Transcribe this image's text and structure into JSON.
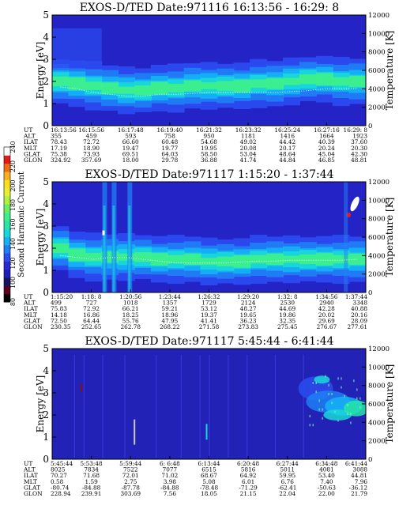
{
  "colorbar": {
    "label": "Second Harmonic Current",
    "ticks": [
      "80",
      "100",
      "120",
      "140",
      "160",
      "180",
      "200",
      "220",
      "240"
    ],
    "colors": [
      "#000000",
      "#5a0020",
      "#15155e",
      "#1c1cbe",
      "#2a2ad4",
      "#2b4cf0",
      "#1f7ff5",
      "#15b2f5",
      "#19d8d8",
      "#26e6a8",
      "#3ff08a",
      "#69f060",
      "#b0f040",
      "#e4f030",
      "#f8e020",
      "#f8b020",
      "#f26c18",
      "#e31a1c",
      "#ffffff"
    ]
  },
  "row_labels": [
    "UT",
    "ALT",
    "ILAT",
    "MLT",
    "GLAT",
    "GLON"
  ],
  "chart_data": [
    {
      "type": "heatmap",
      "title": "EXOS-D/TED  Date:971116  16:13:56 - 16:29: 8",
      "ylabel": "Energy [eV]",
      "y2label": "Temperature [K]",
      "ylim": [
        0,
        5
      ],
      "y2lim": [
        0,
        12000
      ],
      "yticks": [
        "0",
        "1",
        "2",
        "3",
        "4",
        "5"
      ],
      "y2ticks": [
        "0",
        "2000",
        "4000",
        "6000",
        "8000",
        "10000",
        "12000"
      ],
      "band_center": [
        2.0,
        1.9,
        1.8,
        1.7,
        1.6,
        1.6,
        1.7,
        1.7,
        1.8,
        1.8,
        1.8,
        1.8,
        1.9,
        1.9,
        2.0,
        2.1,
        2.1,
        2.0,
        2.0
      ],
      "temperature": [
        4200,
        4000,
        3600,
        3400,
        3200,
        3200,
        3400,
        3400,
        3500,
        3600,
        3600,
        3600,
        3600,
        3600,
        3700,
        3800,
        4000,
        4000,
        4000
      ],
      "columns": [
        {
          "UT": "16:13:56",
          "ALT": "355",
          "ILAT": "78.43",
          "MLT": "17.19",
          "GLAT": "75.38",
          "GLON": "324.92"
        },
        {
          "UT": "16:15:56",
          "ALT": "459",
          "ILAT": "72.72",
          "MLT": "18.90",
          "GLAT": "73.93",
          "GLON": "357.69"
        },
        {
          "UT": "16:17:48",
          "ALT": "593",
          "ILAT": "66.60",
          "MLT": "19.47",
          "GLAT": "69.51",
          "GLON": "18.00"
        },
        {
          "UT": "16:19:40",
          "ALT": "758",
          "ILAT": "60.48",
          "MLT": "19.77",
          "GLAT": "64.03",
          "GLON": "29.78"
        },
        {
          "UT": "16:21:32",
          "ALT": "950",
          "ILAT": "54.68",
          "MLT": "19.95",
          "GLAT": "58.50",
          "GLON": "36.88"
        },
        {
          "UT": "16:23:32",
          "ALT": "1181",
          "ILAT": "49.02",
          "MLT": "20.08",
          "GLAT": "53.04",
          "GLON": "41.74"
        },
        {
          "UT": "16:25:24",
          "ALT": "1416",
          "ILAT": "44.42",
          "MLT": "20.17",
          "GLAT": "48.64",
          "GLON": "44.84"
        },
        {
          "UT": "16:27:16",
          "ALT": "1664",
          "ILAT": "40.39",
          "MLT": "20.24",
          "GLAT": "45.04",
          "GLON": "46.85"
        },
        {
          "UT": "16:29: 8",
          "ALT": "1923",
          "ILAT": "37.60",
          "MLT": "20.30",
          "GLAT": "42.30",
          "GLON": "48.81"
        }
      ]
    },
    {
      "type": "heatmap",
      "title": "EXOS-D/TED   Date:971117  1:15:20 - 1:37:44",
      "ylabel": "Energy [eV]",
      "y2label": "Temperature [K]",
      "ylim": [
        0,
        5
      ],
      "y2lim": [
        0,
        12000
      ],
      "yticks": [
        "0",
        "1",
        "2",
        "3",
        "4",
        "5"
      ],
      "y2ticks": [
        "0",
        "2000",
        "4000",
        "6000",
        "8000",
        "10000",
        "12000"
      ],
      "band_center": [
        2.0,
        1.7,
        1.6,
        1.6,
        1.6,
        1.6,
        1.5,
        1.5,
        1.5,
        1.4,
        1.4,
        1.4,
        1.5,
        1.5,
        1.5,
        1.5,
        1.5,
        1.5,
        1.5
      ],
      "temperature": [
        4000,
        3800,
        3600,
        3800,
        3800,
        3600,
        3400,
        3200,
        3200,
        3200,
        3200,
        3300,
        3400,
        3400,
        3500,
        3500,
        3500,
        3500,
        3600
      ],
      "columns": [
        {
          "UT": "1:15:20",
          "ALT": "499",
          "ILAT": "75.83",
          "MLT": "14.18",
          "GLAT": "72.50",
          "GLON": "230.35"
        },
        {
          "UT": "1:18: 8",
          "ALT": "727",
          "ILAT": "72.92",
          "MLT": "16.86",
          "GLAT": "64.44",
          "GLON": "252.65"
        },
        {
          "UT": "1:20:56",
          "ALT": "1018",
          "ILAT": "66.21",
          "MLT": "18.25",
          "GLAT": "55.76",
          "GLON": "262.78"
        },
        {
          "UT": "1:23:44",
          "ALT": "1357",
          "ILAT": "59.21",
          "MLT": "18.96",
          "GLAT": "47.95",
          "GLON": "268.22"
        },
        {
          "UT": "1:26:32",
          "ALT": "1729",
          "ILAT": "53.12",
          "MLT": "19.37",
          "GLAT": "41.41",
          "GLON": "271.58"
        },
        {
          "UT": "1:29:20",
          "ALT": "2124",
          "ILAT": "48.27",
          "MLT": "19.65",
          "GLAT": "36.23",
          "GLON": "273.83"
        },
        {
          "UT": "1:32: 8",
          "ALT": "2530",
          "ILAT": "44.69",
          "MLT": "19.86",
          "GLAT": "32.35",
          "GLON": "275.45"
        },
        {
          "UT": "1:34:56",
          "ALT": "2940",
          "ILAT": "42.28",
          "MLT": "20.02",
          "GLAT": "29.69",
          "GLON": "276.67"
        },
        {
          "UT": "1:37:44",
          "ALT": "3348",
          "ILAT": "40.88",
          "MLT": "20.16",
          "GLAT": "28.09",
          "GLON": "277.61"
        }
      ]
    },
    {
      "type": "heatmap",
      "title": "EXOS-D/TED   Date:971117  5:45:44 - 6:41:44",
      "ylabel": "Energy [eV]",
      "y2label": "Temperature [K]",
      "ylim": [
        0,
        5
      ],
      "y2lim": [
        0,
        12000
      ],
      "yticks": [
        "0",
        "1",
        "2",
        "3",
        "4",
        "5"
      ],
      "y2ticks": [
        "0",
        "2000",
        "4000",
        "6000",
        "8000",
        "10000",
        "12000"
      ],
      "columns": [
        {
          "UT": "5:45:44",
          "ALT": "8025",
          "ILAT": "70.27",
          "MLT": "0.58",
          "GLAT": "-80.74",
          "GLON": "228.94"
        },
        {
          "UT": "5:53:48",
          "ALT": "7834",
          "ILAT": "71.68",
          "MLT": "1.59",
          "GLAT": "-84.88",
          "GLON": "239.91"
        },
        {
          "UT": "5:59:44",
          "ALT": "7522",
          "ILAT": "72.01",
          "MLT": "2.75",
          "GLAT": "-87.78",
          "GLON": "303.69"
        },
        {
          "UT": "6: 6:48",
          "ALT": "7077",
          "ILAT": "71.02",
          "MLT": "3.98",
          "GLAT": "-84.88",
          "GLON": "7.56"
        },
        {
          "UT": "6:13:44",
          "ALT": "6515",
          "ILAT": "68.67",
          "MLT": "5.08",
          "GLAT": "-78.48",
          "GLON": "18.05"
        },
        {
          "UT": "6:20:48",
          "ALT": "5816",
          "ILAT": "64.92",
          "MLT": "6.01",
          "GLAT": "-71.29",
          "GLON": "21.15"
        },
        {
          "UT": "6:27:44",
          "ALT": "5011",
          "ILAT": "59.95",
          "MLT": "6.76",
          "GLAT": "-62.41",
          "GLON": "22.04"
        },
        {
          "UT": "6:34:48",
          "ALT": "4081",
          "ILAT": "53.40",
          "MLT": "7.40",
          "GLAT": "-50.63",
          "GLON": "22.00"
        },
        {
          "UT": "6:41:44",
          "ALT": "3088",
          "ILAT": "44.81",
          "MLT": "7.96",
          "GLAT": "-36.12",
          "GLON": "21.79"
        }
      ]
    }
  ]
}
